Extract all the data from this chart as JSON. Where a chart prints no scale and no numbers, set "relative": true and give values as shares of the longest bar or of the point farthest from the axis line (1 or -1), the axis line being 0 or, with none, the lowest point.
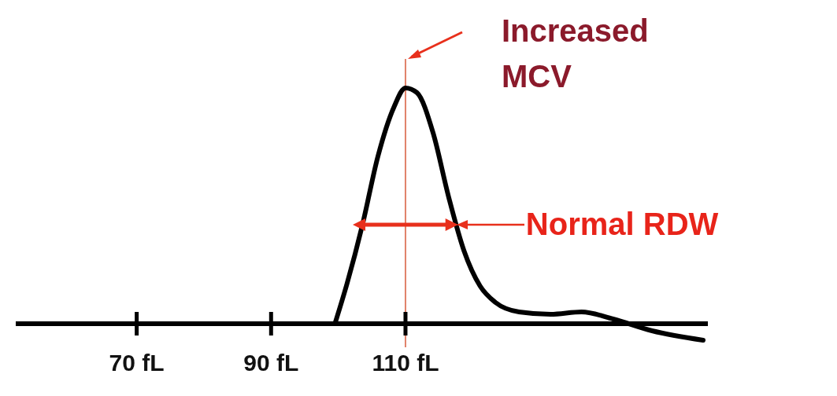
{
  "chart_data": {
    "type": "line",
    "relative": true,
    "x": [
      99.5,
      101.3,
      103.6,
      105.9,
      108.3,
      110,
      111.7,
      114.1,
      116.4,
      118.7,
      121.1,
      123.4,
      126.9,
      131.6,
      136.2,
      140.9,
      146.7,
      154.3
    ],
    "series": [
      {
        "color": "#000000",
        "values": [
          0,
          0.17,
          0.42,
          0.71,
          0.92,
          1,
          0.98,
          0.81,
          0.54,
          0.31,
          0.16,
          0.09,
          0.05,
          0.04,
          0.05,
          0.02,
          -0.03,
          -0.07
        ]
      }
    ],
    "xlim": [
      52,
      155
    ],
    "xticks": [
      {
        "value": 70,
        "label": "70 fL"
      },
      {
        "value": 90,
        "label": "90 fL"
      },
      {
        "value": 110,
        "label": "110 fL"
      }
    ],
    "ref_lines": [
      {
        "axis": "x",
        "value": 110,
        "label": "Increased MCV",
        "color": "#e0826a"
      }
    ],
    "annotations": [
      {
        "text": "Normal RDW",
        "x": 117.6,
        "y": 0.42
      }
    ],
    "marker": "none",
    "line_style": "solid"
  }
}
